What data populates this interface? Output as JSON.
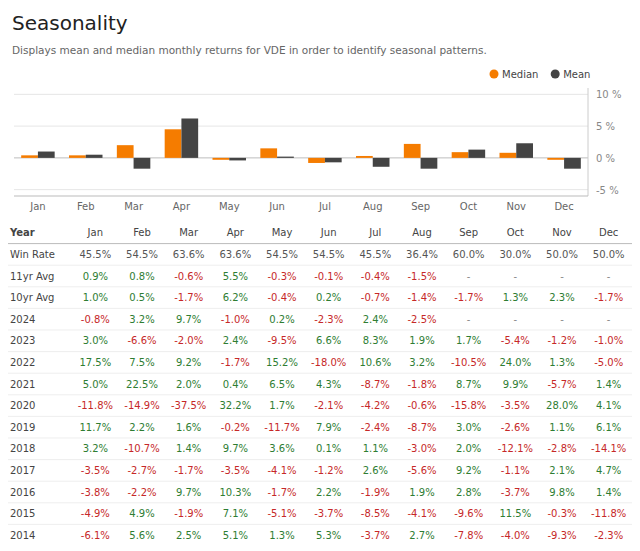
{
  "chart_data": [
    {
      "type": "bar",
      "title": "Seasonality",
      "subtitle": "Displays mean and median monthly returns for VDE in order to identify seasonal patterns.",
      "categories": [
        "Jan",
        "Feb",
        "Mar",
        "Apr",
        "May",
        "Jun",
        "Jul",
        "Aug",
        "Sep",
        "Oct",
        "Nov",
        "Dec"
      ],
      "series": [
        {
          "name": "Median",
          "color": "#f57c00",
          "values": [
            0.4,
            0.4,
            2.0,
            4.5,
            -0.3,
            1.5,
            -0.8,
            0.3,
            2.2,
            0.9,
            0.8,
            -0.3
          ]
        },
        {
          "name": "Mean",
          "color": "#444444",
          "values": [
            1.0,
            0.5,
            -1.7,
            6.2,
            -0.4,
            0.2,
            -0.7,
            -1.4,
            -1.7,
            1.3,
            2.3,
            -1.7
          ]
        }
      ],
      "ylim": [
        -6,
        11
      ],
      "yticks": [
        {
          "value": -5,
          "label": "-5 %"
        },
        {
          "value": 0,
          "label": "0 %"
        },
        {
          "value": 5,
          "label": "5 %"
        },
        {
          "value": 10,
          "label": "10 %"
        }
      ],
      "grid": true,
      "legend": "upper right"
    },
    {
      "type": "table",
      "columns": [
        "Year",
        "Jan",
        "Feb",
        "Mar",
        "Apr",
        "May",
        "Jun",
        "Jul",
        "Aug",
        "Sep",
        "Oct",
        "Nov",
        "Dec"
      ],
      "rows": [
        {
          "label": "Win Rate",
          "values": [
            45.5,
            54.5,
            63.6,
            63.6,
            54.5,
            54.5,
            45.5,
            36.4,
            60.0,
            30.0,
            50.0,
            50.0
          ],
          "value_labels": [
            "45.5%",
            "54.5%",
            "63.6%",
            "63.6%",
            "54.5%",
            "54.5%",
            "45.5%",
            "36.4%",
            "60.0%",
            "30.0%",
            "50.0%",
            "50.0%"
          ],
          "colors": [
            "#555",
            "#555",
            "#555",
            "#555",
            "#555",
            "#555",
            "#555",
            "#555",
            "#555",
            "#555",
            "#555",
            "#555"
          ]
        },
        {
          "label": "11yr Avg",
          "values": [
            0.9,
            0.8,
            -0.6,
            5.5,
            -0.3,
            -0.1,
            -0.4,
            -1.5,
            null,
            null,
            null,
            null
          ],
          "value_labels": [
            "0.9%",
            "0.8%",
            "-0.6%",
            "5.5%",
            "-0.3%",
            "-0.1%",
            "-0.4%",
            "-1.5%",
            "-",
            "-",
            "-",
            "-"
          ],
          "colors": [
            "#2e7d32",
            "#2e7d32",
            "#c62828",
            "#2e7d32",
            "#c62828",
            "#c62828",
            "#c62828",
            "#c62828",
            "#888",
            "#888",
            "#888",
            "#888"
          ]
        },
        {
          "label": "10yr Avg",
          "values": [
            1.0,
            0.5,
            -1.7,
            6.2,
            -0.4,
            0.2,
            -0.7,
            -1.4,
            -1.7,
            1.3,
            2.3,
            -1.7
          ],
          "value_labels": [
            "1.0%",
            "0.5%",
            "-1.7%",
            "6.2%",
            "-0.4%",
            "0.2%",
            "-0.7%",
            "-1.4%",
            "-1.7%",
            "1.3%",
            "2.3%",
            "-1.7%"
          ],
          "colors": [
            "#2e7d32",
            "#2e7d32",
            "#c62828",
            "#2e7d32",
            "#c62828",
            "#2e7d32",
            "#c62828",
            "#c62828",
            "#c62828",
            "#2e7d32",
            "#2e7d32",
            "#c62828"
          ]
        },
        {
          "label": "2024",
          "values": [
            -0.8,
            3.2,
            9.7,
            -1.0,
            0.2,
            -2.3,
            2.4,
            -2.5,
            null,
            null,
            null,
            null
          ],
          "value_labels": [
            "-0.8%",
            "3.2%",
            "9.7%",
            "-1.0%",
            "0.2%",
            "-2.3%",
            "2.4%",
            "-2.5%",
            "-",
            "-",
            "-",
            "-"
          ],
          "colors": [
            "#c62828",
            "#2e7d32",
            "#2e7d32",
            "#c62828",
            "#2e7d32",
            "#c62828",
            "#2e7d32",
            "#c62828",
            "#888",
            "#888",
            "#888",
            "#888"
          ]
        },
        {
          "label": "2023",
          "values": [
            3.0,
            -6.6,
            -2.0,
            2.4,
            -9.5,
            6.6,
            8.3,
            1.9,
            1.7,
            -5.4,
            -1.2,
            -1.0
          ],
          "value_labels": [
            "3.0%",
            "-6.6%",
            "-2.0%",
            "2.4%",
            "-9.5%",
            "6.6%",
            "8.3%",
            "1.9%",
            "1.7%",
            "-5.4%",
            "-1.2%",
            "-1.0%"
          ],
          "colors": [
            "#2e7d32",
            "#c62828",
            "#c62828",
            "#2e7d32",
            "#c62828",
            "#2e7d32",
            "#2e7d32",
            "#2e7d32",
            "#2e7d32",
            "#c62828",
            "#c62828",
            "#c62828"
          ]
        },
        {
          "label": "2022",
          "values": [
            17.5,
            7.5,
            9.2,
            -1.7,
            15.2,
            -18.0,
            10.6,
            3.2,
            -10.5,
            24.0,
            1.3,
            -5.0
          ],
          "value_labels": [
            "17.5%",
            "7.5%",
            "9.2%",
            "-1.7%",
            "15.2%",
            "-18.0%",
            "10.6%",
            "3.2%",
            "-10.5%",
            "24.0%",
            "1.3%",
            "-5.0%"
          ],
          "colors": [
            "#2e7d32",
            "#2e7d32",
            "#2e7d32",
            "#c62828",
            "#2e7d32",
            "#c62828",
            "#2e7d32",
            "#2e7d32",
            "#c62828",
            "#2e7d32",
            "#2e7d32",
            "#c62828"
          ]
        },
        {
          "label": "2021",
          "values": [
            5.0,
            22.5,
            2.0,
            0.4,
            6.5,
            4.3,
            -8.7,
            -1.8,
            8.7,
            9.9,
            -5.7,
            1.4
          ],
          "value_labels": [
            "5.0%",
            "22.5%",
            "2.0%",
            "0.4%",
            "6.5%",
            "4.3%",
            "-8.7%",
            "-1.8%",
            "8.7%",
            "9.9%",
            "-5.7%",
            "1.4%"
          ],
          "colors": [
            "#2e7d32",
            "#2e7d32",
            "#2e7d32",
            "#2e7d32",
            "#2e7d32",
            "#2e7d32",
            "#c62828",
            "#c62828",
            "#2e7d32",
            "#2e7d32",
            "#c62828",
            "#2e7d32"
          ]
        },
        {
          "label": "2020",
          "values": [
            -11.8,
            -14.9,
            -37.5,
            32.2,
            1.7,
            -2.1,
            -4.2,
            -0.6,
            -15.8,
            -3.5,
            28.0,
            4.1
          ],
          "value_labels": [
            "-11.8%",
            "-14.9%",
            "-37.5%",
            "32.2%",
            "1.7%",
            "-2.1%",
            "-4.2%",
            "-0.6%",
            "-15.8%",
            "-3.5%",
            "28.0%",
            "4.1%"
          ],
          "colors": [
            "#c62828",
            "#c62828",
            "#c62828",
            "#2e7d32",
            "#2e7d32",
            "#c62828",
            "#c62828",
            "#c62828",
            "#c62828",
            "#c62828",
            "#2e7d32",
            "#2e7d32"
          ]
        },
        {
          "label": "2019",
          "values": [
            11.7,
            2.2,
            1.6,
            -0.2,
            -11.7,
            7.9,
            -2.4,
            -8.7,
            3.0,
            -2.6,
            1.1,
            6.1
          ],
          "value_labels": [
            "11.7%",
            "2.2%",
            "1.6%",
            "-0.2%",
            "-11.7%",
            "7.9%",
            "-2.4%",
            "-8.7%",
            "3.0%",
            "-2.6%",
            "1.1%",
            "6.1%"
          ],
          "colors": [
            "#2e7d32",
            "#2e7d32",
            "#2e7d32",
            "#c62828",
            "#c62828",
            "#2e7d32",
            "#c62828",
            "#c62828",
            "#2e7d32",
            "#c62828",
            "#2e7d32",
            "#2e7d32"
          ]
        },
        {
          "label": "2018",
          "values": [
            3.2,
            -10.7,
            1.4,
            9.7,
            3.6,
            0.1,
            1.1,
            -3.0,
            2.0,
            -12.1,
            -2.8,
            -14.1
          ],
          "value_labels": [
            "3.2%",
            "-10.7%",
            "1.4%",
            "9.7%",
            "3.6%",
            "0.1%",
            "1.1%",
            "-3.0%",
            "2.0%",
            "-12.1%",
            "-2.8%",
            "-14.1%"
          ],
          "colors": [
            "#2e7d32",
            "#c62828",
            "#2e7d32",
            "#2e7d32",
            "#2e7d32",
            "#2e7d32",
            "#2e7d32",
            "#c62828",
            "#2e7d32",
            "#c62828",
            "#c62828",
            "#c62828"
          ]
        },
        {
          "label": "2017",
          "values": [
            -3.5,
            -2.7,
            -1.7,
            -3.5,
            -4.1,
            -1.2,
            2.6,
            -5.6,
            9.2,
            -1.1,
            2.1,
            4.7
          ],
          "value_labels": [
            "-3.5%",
            "-2.7%",
            "-1.7%",
            "-3.5%",
            "-4.1%",
            "-1.2%",
            "2.6%",
            "-5.6%",
            "9.2%",
            "-1.1%",
            "2.1%",
            "4.7%"
          ],
          "colors": [
            "#c62828",
            "#c62828",
            "#c62828",
            "#c62828",
            "#c62828",
            "#c62828",
            "#2e7d32",
            "#c62828",
            "#2e7d32",
            "#c62828",
            "#2e7d32",
            "#2e7d32"
          ]
        },
        {
          "label": "2016",
          "values": [
            -3.8,
            -2.2,
            9.7,
            10.3,
            -1.7,
            2.2,
            -1.9,
            1.9,
            2.8,
            -3.7,
            9.8,
            1.4
          ],
          "value_labels": [
            "-3.8%",
            "-2.2%",
            "9.7%",
            "10.3%",
            "-1.7%",
            "2.2%",
            "-1.9%",
            "1.9%",
            "2.8%",
            "-3.7%",
            "9.8%",
            "1.4%"
          ],
          "colors": [
            "#c62828",
            "#c62828",
            "#2e7d32",
            "#2e7d32",
            "#c62828",
            "#2e7d32",
            "#c62828",
            "#2e7d32",
            "#2e7d32",
            "#c62828",
            "#2e7d32",
            "#2e7d32"
          ]
        },
        {
          "label": "2015",
          "values": [
            -4.9,
            4.9,
            -1.9,
            7.1,
            -5.1,
            -3.7,
            -8.5,
            -4.1,
            -9.6,
            11.5,
            -0.3,
            -11.8
          ],
          "value_labels": [
            "-4.9%",
            "4.9%",
            "-1.9%",
            "7.1%",
            "-5.1%",
            "-3.7%",
            "-8.5%",
            "-4.1%",
            "-9.6%",
            "11.5%",
            "-0.3%",
            "-11.8%"
          ],
          "colors": [
            "#c62828",
            "#2e7d32",
            "#c62828",
            "#2e7d32",
            "#c62828",
            "#c62828",
            "#c62828",
            "#c62828",
            "#c62828",
            "#2e7d32",
            "#c62828",
            "#c62828"
          ]
        },
        {
          "label": "2014",
          "values": [
            -6.1,
            5.6,
            2.5,
            5.1,
            1.3,
            5.3,
            -3.7,
            2.7,
            -7.8,
            -4.0,
            -9.3,
            -2.3
          ],
          "value_labels": [
            "-6.1%",
            "5.6%",
            "2.5%",
            "5.1%",
            "1.3%",
            "5.3%",
            "-3.7%",
            "2.7%",
            "-7.8%",
            "-4.0%",
            "-9.3%",
            "-2.3%"
          ],
          "colors": [
            "#c62828",
            "#2e7d32",
            "#2e7d32",
            "#2e7d32",
            "#2e7d32",
            "#2e7d32",
            "#c62828",
            "#2e7d32",
            "#c62828",
            "#c62828",
            "#c62828",
            "#c62828"
          ]
        }
      ]
    }
  ]
}
